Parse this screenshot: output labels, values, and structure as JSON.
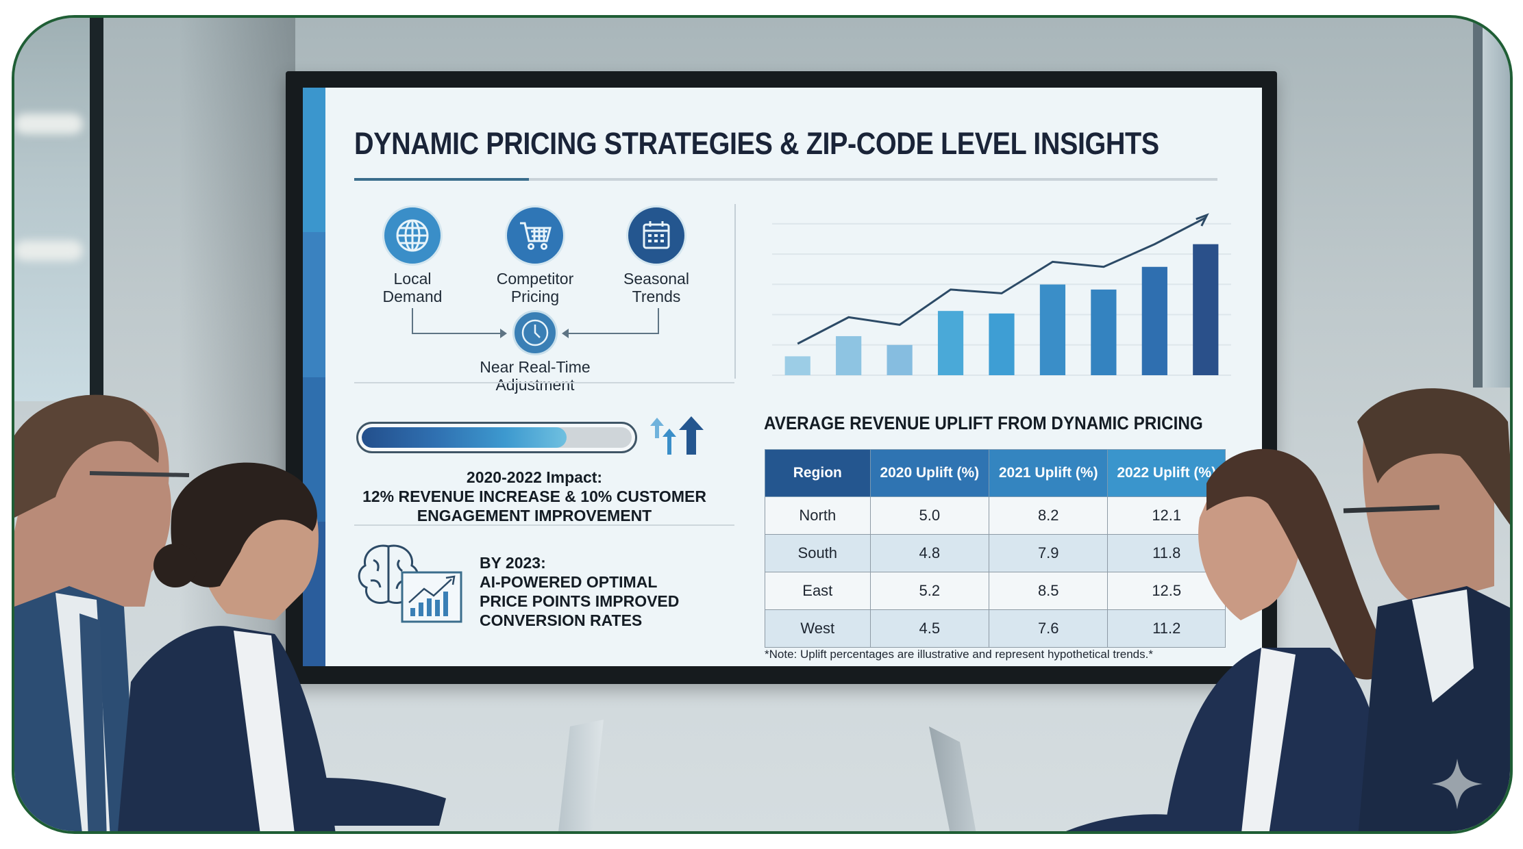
{
  "scene": {
    "description": "Four business people in a meeting room viewing a wall-mounted display",
    "frame_border_color": "#1f5e35",
    "watermark_icon": "sparkle-icon"
  },
  "slide": {
    "title": "DYNAMIC PRICING STRATEGIES & ZIP-CODE LEVEL INSIGHTS",
    "stripe_colors": [
      "#3b96cd",
      "#3a82c0",
      "#2f6fae",
      "#2a5d9c"
    ],
    "factors": [
      {
        "icon": "globe-icon",
        "line1": "Local",
        "line2": "Demand",
        "color": "#3a8ec8"
      },
      {
        "icon": "shopping-cart-icon",
        "line1": "Competitor",
        "line2": "Pricing",
        "color": "#2f76b6"
      },
      {
        "icon": "calendar-icon",
        "line1": "Seasonal",
        "line2": "Trends",
        "color": "#24568f"
      }
    ],
    "result": {
      "icon": "clock-icon",
      "line1": "Near Real-Time",
      "line2": "Adjustment"
    },
    "progress": {
      "percent": 76
    },
    "impact": {
      "line1": "2020-2022 Impact:",
      "line2": "12% REVENUE INCREASE & 10% CUSTOMER",
      "line3": "ENGAGEMENT IMPROVEMENT"
    },
    "ai": {
      "line1": "BY 2023:",
      "line2": "AI-POWERED OPTIMAL",
      "line3": "PRICE POINTS IMPROVED",
      "line4": "CONVERSION RATES"
    },
    "table": {
      "title": "AVERAGE REVENUE UPLIFT FROM DYNAMIC PRICING",
      "headers": [
        "Region",
        "2020 Uplift (%)",
        "2021 Uplift (%)",
        "2022 Uplift (%)"
      ],
      "header_colors": [
        "#24568f",
        "#2f74b2",
        "#3485c0",
        "#3a95cc"
      ],
      "rows": [
        [
          "North",
          "5.0",
          "8.2",
          "12.1"
        ],
        [
          "South",
          "4.8",
          "7.9",
          "11.8"
        ],
        [
          "East",
          "5.2",
          "8.5",
          "12.5"
        ],
        [
          "West",
          "4.5",
          "7.6",
          "11.2"
        ]
      ],
      "note": "*Note: Uplift percentages are illustrative and represent hypothetical trends.*"
    }
  },
  "chart_data": [
    {
      "type": "bar",
      "title": "",
      "xlabel": "",
      "ylabel": "",
      "grid": true,
      "categories": [
        "1",
        "2",
        "3",
        "4",
        "5",
        "6",
        "7",
        "8",
        "9"
      ],
      "values": [
        1.5,
        3.1,
        2.4,
        5.1,
        4.9,
        7.2,
        6.8,
        8.6,
        10.4
      ],
      "trend_line": [
        2.5,
        4.6,
        4.0,
        6.8,
        6.5,
        9.0,
        8.6,
        10.4,
        12.5
      ],
      "bar_colors": [
        "#9ccde6",
        "#8ec4e2",
        "#86bde0",
        "#4aa9d8",
        "#3e9ed4",
        "#3a8ec8",
        "#3483c0",
        "#2f6fb0",
        "#2a508a"
      ],
      "ylim": [
        0,
        12.5
      ]
    },
    {
      "type": "table",
      "title": "AVERAGE REVENUE UPLIFT FROM DYNAMIC PRICING",
      "categories": [
        "North",
        "South",
        "East",
        "West"
      ],
      "series": [
        {
          "name": "2020 Uplift (%)",
          "values": [
            5.0,
            4.8,
            5.2,
            4.5
          ]
        },
        {
          "name": "2021 Uplift (%)",
          "values": [
            8.2,
            7.9,
            8.5,
            7.6
          ]
        },
        {
          "name": "2022 Uplift (%)",
          "values": [
            12.1,
            11.8,
            12.5,
            11.2
          ]
        }
      ]
    }
  ]
}
